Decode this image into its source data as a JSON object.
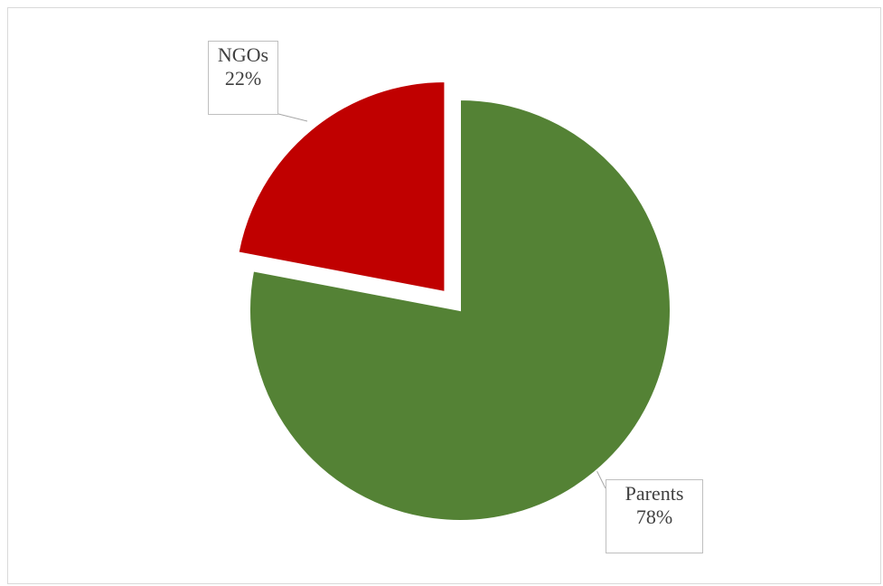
{
  "chart_data": {
    "type": "pie",
    "title": "",
    "slices": [
      {
        "label": "Parents",
        "value": 78,
        "percent_label": "78%",
        "color": "#548235",
        "exploded": false
      },
      {
        "label": "NGOs",
        "value": 22,
        "percent_label": "22%",
        "color": "#c00000",
        "exploded": true
      }
    ],
    "legend": "none"
  }
}
